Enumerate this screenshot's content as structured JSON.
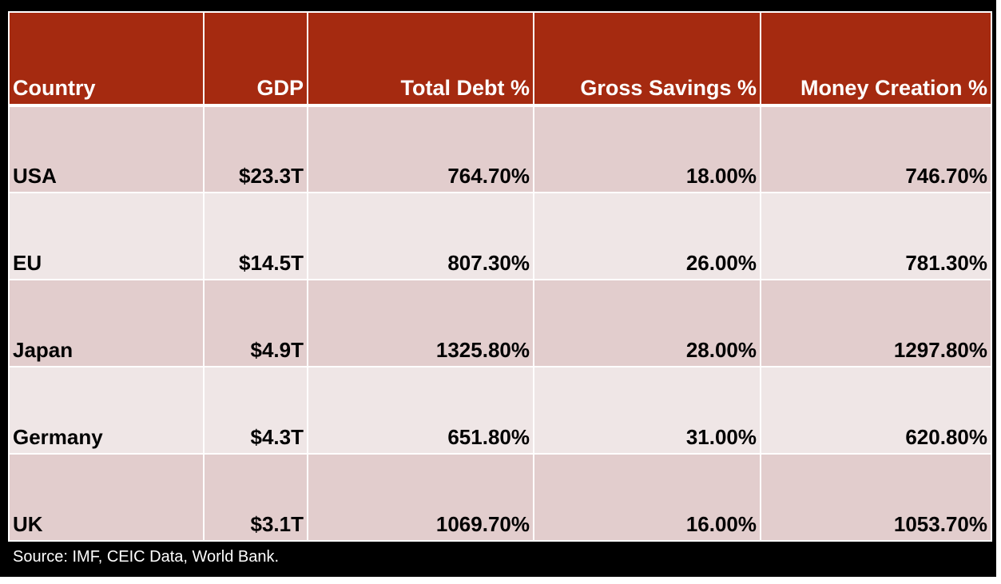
{
  "chart_data": {
    "type": "table",
    "columns": [
      "Country",
      "GDP",
      "Total Debt %",
      "Gross Savings %",
      "Money Creation %"
    ],
    "rows": [
      [
        "USA",
        "$23.3T",
        "764.70%",
        "18.00%",
        "746.70%"
      ],
      [
        "EU",
        "$14.5T",
        "807.30%",
        "26.00%",
        "781.30%"
      ],
      [
        "Japan",
        "$4.9T",
        "1325.80%",
        "28.00%",
        "1297.80%"
      ],
      [
        "Germany",
        "$4.3T",
        "651.80%",
        "31.00%",
        "620.80%"
      ],
      [
        "UK",
        "$3.1T",
        "1069.70%",
        "16.00%",
        "1053.70%"
      ]
    ],
    "source": "Source: IMF, CEIC Data, World Bank."
  },
  "colors": {
    "header_bg": "#a52a10",
    "row_odd": "#e2cdcd",
    "row_even": "#efe6e6",
    "frame": "#000000"
  }
}
